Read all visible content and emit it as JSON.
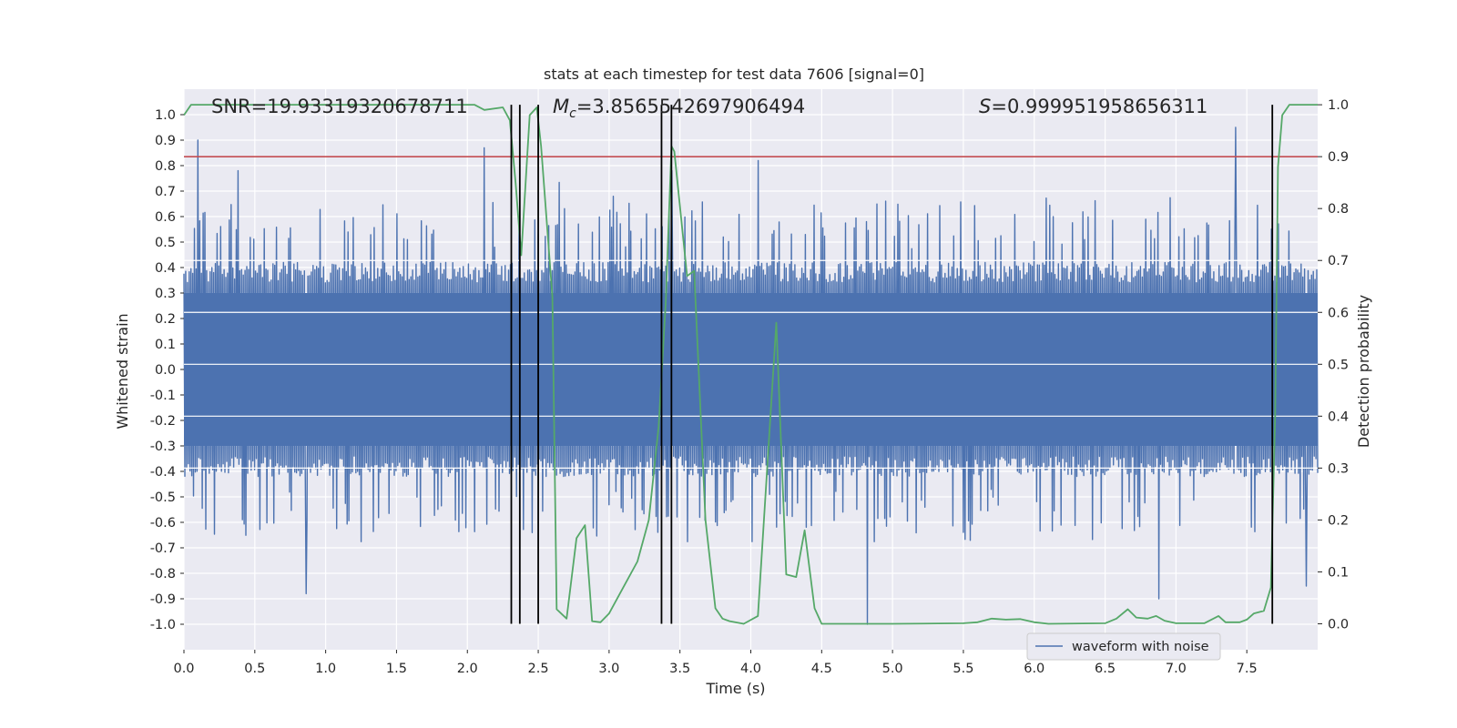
{
  "chart_data": {
    "type": "line",
    "title": "stats at each timestep for test data 7606 [signal=0]",
    "xlabel": "Time (s)",
    "ylabel_left": "Whitened strain",
    "ylabel_right": "Detection probability",
    "xlim": [
      0.0,
      8.0
    ],
    "ylim_left": [
      -1.1,
      1.1
    ],
    "ylim_right": [
      -0.05,
      1.03
    ],
    "grid": true,
    "xticks": [
      "0.0",
      "0.5",
      "1.0",
      "1.5",
      "2.0",
      "2.5",
      "3.0",
      "3.5",
      "4.0",
      "4.5",
      "5.0",
      "5.5",
      "6.0",
      "6.5",
      "7.0",
      "7.5"
    ],
    "xtick_values": [
      0.0,
      0.5,
      1.0,
      1.5,
      2.0,
      2.5,
      3.0,
      3.5,
      4.0,
      4.5,
      5.0,
      5.5,
      6.0,
      6.5,
      7.0,
      7.5
    ],
    "yticks_left": [
      "1.0",
      "0.9",
      "0.8",
      "0.7",
      "0.6",
      "0.5",
      "0.4",
      "0.3",
      "0.2",
      "0.1",
      "0.0",
      "-0.1",
      "-0.2",
      "-0.3",
      "-0.4",
      "-0.5",
      "-0.6",
      "-0.7",
      "-0.8",
      "-0.9",
      "-1.0"
    ],
    "ytick_values_left": [
      1.0,
      0.9,
      0.8,
      0.7,
      0.6,
      0.5,
      0.4,
      0.3,
      0.2,
      0.1,
      0.0,
      -0.1,
      -0.2,
      -0.3,
      -0.4,
      -0.5,
      -0.6,
      -0.7,
      -0.8,
      -0.9,
      -1.0
    ],
    "yticks_right": [
      "1.0",
      "0.9",
      "0.8",
      "0.7",
      "0.6",
      "0.5",
      "0.4",
      "0.3",
      "0.2",
      "0.1",
      "0.0"
    ],
    "ytick_values_right": [
      1.0,
      0.9,
      0.8,
      0.7,
      0.6,
      0.5,
      0.4,
      0.3,
      0.2,
      0.1,
      0.0
    ],
    "annotations": {
      "snr": "SNR=19.93319320678711",
      "mc_prefix": "M",
      "mc_sub": "c",
      "mc_value": "=3.8565542697906494",
      "s_prefix": "S",
      "s_value": "=0.999951958656311"
    },
    "threshold_line": {
      "value": 0.9,
      "axis": "right",
      "color": "#c44e52"
    },
    "vertical_lines": [
      2.31,
      2.37,
      2.5,
      3.37,
      3.44,
      7.68
    ],
    "legend": {
      "label": "waveform with noise",
      "placement": "lower-right"
    },
    "series": [
      {
        "name": "waveform with noise",
        "axis": "left",
        "color": "#4c72b0",
        "style": "dense-noise",
        "n_samples": 1300,
        "typical_envelope": 0.42,
        "peaks": [
          [
            0.1,
            0.9
          ],
          [
            0.38,
            0.78
          ],
          [
            2.12,
            0.87
          ],
          [
            3.44,
            0.78
          ],
          [
            4.05,
            0.82
          ],
          [
            7.42,
            0.95
          ],
          [
            0.86,
            -0.88
          ],
          [
            4.82,
            -1.0
          ],
          [
            6.88,
            -0.9
          ],
          [
            7.92,
            -0.85
          ]
        ]
      },
      {
        "name": "detection probability",
        "axis": "right",
        "color": "#55a868",
        "style": "line",
        "points": [
          [
            0.0,
            0.98
          ],
          [
            0.05,
            1.0
          ],
          [
            0.1,
            1.0
          ],
          [
            0.5,
            1.0
          ],
          [
            1.0,
            1.0
          ],
          [
            1.5,
            1.0
          ],
          [
            2.0,
            1.0
          ],
          [
            2.05,
            1.0
          ],
          [
            2.12,
            0.99
          ],
          [
            2.25,
            0.995
          ],
          [
            2.3,
            0.97
          ],
          [
            2.34,
            0.85
          ],
          [
            2.38,
            0.71
          ],
          [
            2.44,
            0.98
          ],
          [
            2.49,
            0.995
          ],
          [
            2.52,
            0.92
          ],
          [
            2.6,
            0.63
          ],
          [
            2.63,
            0.028
          ],
          [
            2.7,
            0.01
          ],
          [
            2.77,
            0.165
          ],
          [
            2.83,
            0.19
          ],
          [
            2.88,
            0.005
          ],
          [
            2.94,
            0.003
          ],
          [
            3.0,
            0.02
          ],
          [
            3.1,
            0.07
          ],
          [
            3.2,
            0.12
          ],
          [
            3.28,
            0.2
          ],
          [
            3.35,
            0.38
          ],
          [
            3.4,
            0.62
          ],
          [
            3.44,
            0.92
          ],
          [
            3.46,
            0.91
          ],
          [
            3.55,
            0.67
          ],
          [
            3.6,
            0.68
          ],
          [
            3.68,
            0.2
          ],
          [
            3.75,
            0.03
          ],
          [
            3.8,
            0.01
          ],
          [
            3.85,
            0.005
          ],
          [
            3.95,
            0.0
          ],
          [
            4.05,
            0.015
          ],
          [
            4.18,
            0.58
          ],
          [
            4.25,
            0.095
          ],
          [
            4.32,
            0.09
          ],
          [
            4.38,
            0.18
          ],
          [
            4.45,
            0.03
          ],
          [
            4.5,
            0.0
          ],
          [
            5.0,
            0.0
          ],
          [
            5.5,
            0.001
          ],
          [
            5.6,
            0.003
          ],
          [
            5.7,
            0.01
          ],
          [
            5.8,
            0.008
          ],
          [
            5.9,
            0.009
          ],
          [
            6.0,
            0.003
          ],
          [
            6.1,
            0.0
          ],
          [
            6.5,
            0.001
          ],
          [
            6.58,
            0.01
          ],
          [
            6.66,
            0.028
          ],
          [
            6.72,
            0.012
          ],
          [
            6.8,
            0.01
          ],
          [
            6.86,
            0.015
          ],
          [
            6.92,
            0.006
          ],
          [
            7.0,
            0.001
          ],
          [
            7.2,
            0.001
          ],
          [
            7.3,
            0.015
          ],
          [
            7.35,
            0.003
          ],
          [
            7.45,
            0.003
          ],
          [
            7.5,
            0.008
          ],
          [
            7.55,
            0.02
          ],
          [
            7.62,
            0.025
          ],
          [
            7.67,
            0.07
          ],
          [
            7.7,
            0.4
          ],
          [
            7.72,
            0.88
          ],
          [
            7.75,
            0.98
          ],
          [
            7.8,
            1.0
          ],
          [
            8.0,
            1.0
          ]
        ]
      }
    ]
  }
}
